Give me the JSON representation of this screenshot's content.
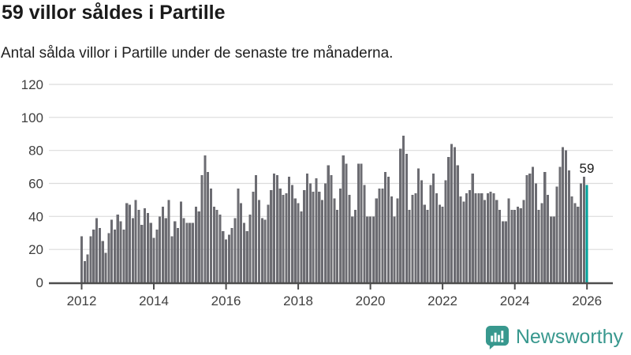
{
  "header": {
    "title": "59 villor såldes i Partille",
    "subtitle": "Antal sålda villor i Partille under de senaste tre månaderna."
  },
  "chart_data": {
    "type": "bar",
    "title": "59 villor såldes i Partille",
    "xlabel": "",
    "ylabel": "",
    "frequency": "monthly",
    "x_start": "2012-01",
    "x_end": "2026-01",
    "ylim": [
      0,
      120
    ],
    "y_ticks": [
      0,
      20,
      40,
      60,
      80,
      100,
      120
    ],
    "x_tick_years": [
      2012,
      2014,
      2016,
      2018,
      2020,
      2022,
      2024,
      2026
    ],
    "grid": true,
    "legend": "none",
    "values": [
      28,
      13,
      17,
      28,
      32,
      39,
      33,
      25,
      18,
      30,
      38,
      32,
      41,
      37,
      32,
      48,
      47,
      39,
      50,
      44,
      35,
      45,
      42,
      36,
      27,
      32,
      40,
      46,
      39,
      50,
      28,
      37,
      33,
      49,
      39,
      36,
      36,
      36,
      46,
      43,
      65,
      77,
      67,
      57,
      46,
      44,
      41,
      31,
      26,
      29,
      33,
      39,
      57,
      48,
      36,
      31,
      41,
      55,
      65,
      50,
      39,
      38,
      47,
      56,
      66,
      65,
      57,
      53,
      54,
      64,
      59,
      51,
      48,
      43,
      56,
      66,
      60,
      55,
      63,
      55,
      50,
      60,
      71,
      65,
      51,
      44,
      57,
      77,
      72,
      53,
      40,
      44,
      72,
      72,
      59,
      40,
      40,
      40,
      51,
      57,
      57,
      67,
      64,
      52,
      40,
      51,
      81,
      89,
      78,
      44,
      53,
      54,
      69,
      62,
      47,
      44,
      59,
      66,
      54,
      47,
      46,
      62,
      76,
      84,
      82,
      71,
      52,
      49,
      54,
      56,
      66,
      54,
      54,
      54,
      50,
      54,
      55,
      54,
      50,
      44,
      37,
      37,
      51,
      44,
      44,
      46,
      45,
      50,
      65,
      66,
      70,
      60,
      44,
      48,
      67,
      53,
      40,
      40,
      58,
      70,
      82,
      80,
      68,
      52,
      48,
      46,
      60,
      64,
      59
    ],
    "latest_value": 59,
    "annotation": {
      "text": "59",
      "applies_to": "last-bar"
    },
    "bar_color": "#6c6c72",
    "highlight_color": "#00a09a",
    "grid_color": "#dcdcdc",
    "axis_color": "#4d4d4d"
  },
  "branding": {
    "name": "Newsworthy",
    "color": "#38988e"
  }
}
